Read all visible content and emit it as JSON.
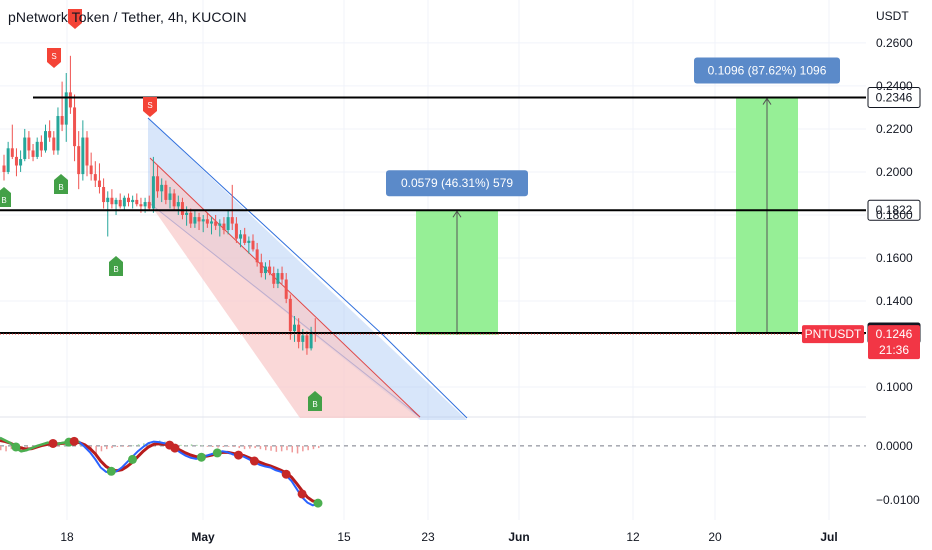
{
  "header": {
    "title": "pNetwork Token / Tether, 4h, KUCOIN",
    "currency": "USDT"
  },
  "chart_data": {
    "type": "candlestick",
    "symbol": "PNTUSDT",
    "exchange": "KUCOIN",
    "interval": "4h",
    "x_ticks": [
      {
        "label": "18",
        "bold": false
      },
      {
        "label": "May",
        "bold": true
      },
      {
        "label": "15",
        "bold": false
      },
      {
        "label": "23",
        "bold": false
      },
      {
        "label": "Jun",
        "bold": true
      },
      {
        "label": "12",
        "bold": false
      },
      {
        "label": "20",
        "bold": false
      },
      {
        "label": "Jul",
        "bold": true
      }
    ],
    "price_axis": {
      "ticks": [
        0.26,
        0.24,
        0.22,
        0.2,
        0.18,
        0.16,
        0.14,
        0.1
      ],
      "tick_labels": [
        "0.2600",
        "0.2400",
        "0.2200",
        "0.2000",
        "0.1800",
        "0.1600",
        "0.1400",
        "0.1000"
      ],
      "range": [
        0.087,
        0.266
      ]
    },
    "levels": [
      {
        "value": 0.2346,
        "label": "0.2346"
      },
      {
        "value": 0.1822,
        "label": "0.1822"
      },
      {
        "value": 0.1251,
        "label": "0.1251"
      }
    ],
    "last_price": {
      "symbol_label": "PNTUSDT",
      "value": 0.1246,
      "label": "0.1246",
      "countdown": "21:36"
    },
    "targets": [
      {
        "label": "0.0579 (46.31%) 579",
        "from": 0.1243,
        "to": 0.1822
      },
      {
        "label": "0.1096 (87.62%) 1096",
        "from": 0.125,
        "to": 0.2346
      }
    ],
    "candles": [
      {
        "o": 0.203,
        "h": 0.208,
        "l": 0.196,
        "c": 0.2
      },
      {
        "o": 0.2,
        "h": 0.214,
        "l": 0.199,
        "c": 0.211
      },
      {
        "o": 0.211,
        "h": 0.222,
        "l": 0.206,
        "c": 0.207
      },
      {
        "o": 0.207,
        "h": 0.211,
        "l": 0.198,
        "c": 0.203
      },
      {
        "o": 0.203,
        "h": 0.21,
        "l": 0.2,
        "c": 0.206
      },
      {
        "o": 0.206,
        "h": 0.22,
        "l": 0.205,
        "c": 0.216
      },
      {
        "o": 0.216,
        "h": 0.219,
        "l": 0.206,
        "c": 0.21
      },
      {
        "o": 0.21,
        "h": 0.213,
        "l": 0.205,
        "c": 0.207
      },
      {
        "o": 0.207,
        "h": 0.216,
        "l": 0.206,
        "c": 0.214
      },
      {
        "o": 0.214,
        "h": 0.217,
        "l": 0.207,
        "c": 0.21
      },
      {
        "o": 0.21,
        "h": 0.222,
        "l": 0.209,
        "c": 0.219
      },
      {
        "o": 0.219,
        "h": 0.224,
        "l": 0.214,
        "c": 0.216
      },
      {
        "o": 0.216,
        "h": 0.219,
        "l": 0.208,
        "c": 0.21
      },
      {
        "o": 0.21,
        "h": 0.23,
        "l": 0.208,
        "c": 0.226
      },
      {
        "o": 0.226,
        "h": 0.242,
        "l": 0.219,
        "c": 0.222
      },
      {
        "o": 0.222,
        "h": 0.246,
        "l": 0.214,
        "c": 0.237
      },
      {
        "o": 0.237,
        "h": 0.254,
        "l": 0.227,
        "c": 0.23
      },
      {
        "o": 0.23,
        "h": 0.236,
        "l": 0.205,
        "c": 0.212
      },
      {
        "o": 0.212,
        "h": 0.219,
        "l": 0.192,
        "c": 0.199
      },
      {
        "o": 0.199,
        "h": 0.224,
        "l": 0.196,
        "c": 0.216
      },
      {
        "o": 0.216,
        "h": 0.219,
        "l": 0.198,
        "c": 0.203
      },
      {
        "o": 0.203,
        "h": 0.209,
        "l": 0.196,
        "c": 0.199
      },
      {
        "o": 0.199,
        "h": 0.205,
        "l": 0.193,
        "c": 0.196
      },
      {
        "o": 0.196,
        "h": 0.204,
        "l": 0.19,
        "c": 0.193
      },
      {
        "o": 0.193,
        "h": 0.197,
        "l": 0.183,
        "c": 0.186
      },
      {
        "o": 0.186,
        "h": 0.191,
        "l": 0.17,
        "c": 0.188
      },
      {
        "o": 0.188,
        "h": 0.192,
        "l": 0.183,
        "c": 0.185
      },
      {
        "o": 0.185,
        "h": 0.188,
        "l": 0.18,
        "c": 0.187
      },
      {
        "o": 0.187,
        "h": 0.19,
        "l": 0.183,
        "c": 0.184
      },
      {
        "o": 0.184,
        "h": 0.189,
        "l": 0.182,
        "c": 0.188
      },
      {
        "o": 0.188,
        "h": 0.19,
        "l": 0.184,
        "c": 0.186
      },
      {
        "o": 0.186,
        "h": 0.189,
        "l": 0.183,
        "c": 0.187
      },
      {
        "o": 0.187,
        "h": 0.19,
        "l": 0.184,
        "c": 0.185
      },
      {
        "o": 0.185,
        "h": 0.188,
        "l": 0.181,
        "c": 0.184
      },
      {
        "o": 0.184,
        "h": 0.188,
        "l": 0.181,
        "c": 0.186
      },
      {
        "o": 0.186,
        "h": 0.189,
        "l": 0.182,
        "c": 0.183
      },
      {
        "o": 0.183,
        "h": 0.207,
        "l": 0.181,
        "c": 0.198
      },
      {
        "o": 0.198,
        "h": 0.203,
        "l": 0.188,
        "c": 0.191
      },
      {
        "o": 0.191,
        "h": 0.197,
        "l": 0.186,
        "c": 0.194
      },
      {
        "o": 0.194,
        "h": 0.196,
        "l": 0.185,
        "c": 0.187
      },
      {
        "o": 0.187,
        "h": 0.193,
        "l": 0.183,
        "c": 0.19
      },
      {
        "o": 0.19,
        "h": 0.192,
        "l": 0.182,
        "c": 0.184
      },
      {
        "o": 0.184,
        "h": 0.189,
        "l": 0.18,
        "c": 0.186
      },
      {
        "o": 0.186,
        "h": 0.188,
        "l": 0.178,
        "c": 0.18
      },
      {
        "o": 0.18,
        "h": 0.184,
        "l": 0.175,
        "c": 0.181
      },
      {
        "o": 0.181,
        "h": 0.183,
        "l": 0.174,
        "c": 0.176
      },
      {
        "o": 0.176,
        "h": 0.182,
        "l": 0.174,
        "c": 0.179
      },
      {
        "o": 0.179,
        "h": 0.181,
        "l": 0.173,
        "c": 0.177
      },
      {
        "o": 0.177,
        "h": 0.18,
        "l": 0.172,
        "c": 0.178
      },
      {
        "o": 0.178,
        "h": 0.181,
        "l": 0.174,
        "c": 0.176
      },
      {
        "o": 0.176,
        "h": 0.179,
        "l": 0.171,
        "c": 0.177
      },
      {
        "o": 0.177,
        "h": 0.18,
        "l": 0.173,
        "c": 0.175
      },
      {
        "o": 0.175,
        "h": 0.178,
        "l": 0.17,
        "c": 0.176
      },
      {
        "o": 0.176,
        "h": 0.179,
        "l": 0.171,
        "c": 0.173
      },
      {
        "o": 0.173,
        "h": 0.182,
        "l": 0.171,
        "c": 0.179
      },
      {
        "o": 0.179,
        "h": 0.194,
        "l": 0.173,
        "c": 0.176
      },
      {
        "o": 0.176,
        "h": 0.179,
        "l": 0.167,
        "c": 0.169
      },
      {
        "o": 0.169,
        "h": 0.173,
        "l": 0.165,
        "c": 0.171
      },
      {
        "o": 0.171,
        "h": 0.174,
        "l": 0.166,
        "c": 0.167
      },
      {
        "o": 0.167,
        "h": 0.17,
        "l": 0.162,
        "c": 0.168
      },
      {
        "o": 0.168,
        "h": 0.171,
        "l": 0.163,
        "c": 0.164
      },
      {
        "o": 0.164,
        "h": 0.167,
        "l": 0.156,
        "c": 0.158
      },
      {
        "o": 0.158,
        "h": 0.162,
        "l": 0.151,
        "c": 0.153
      },
      {
        "o": 0.153,
        "h": 0.158,
        "l": 0.15,
        "c": 0.156
      },
      {
        "o": 0.156,
        "h": 0.159,
        "l": 0.152,
        "c": 0.153
      },
      {
        "o": 0.153,
        "h": 0.156,
        "l": 0.146,
        "c": 0.148
      },
      {
        "o": 0.148,
        "h": 0.155,
        "l": 0.146,
        "c": 0.153
      },
      {
        "o": 0.153,
        "h": 0.156,
        "l": 0.148,
        "c": 0.15
      },
      {
        "o": 0.15,
        "h": 0.153,
        "l": 0.139,
        "c": 0.141
      },
      {
        "o": 0.141,
        "h": 0.143,
        "l": 0.122,
        "c": 0.126
      },
      {
        "o": 0.126,
        "h": 0.133,
        "l": 0.121,
        "c": 0.129
      },
      {
        "o": 0.129,
        "h": 0.132,
        "l": 0.118,
        "c": 0.121
      },
      {
        "o": 0.121,
        "h": 0.127,
        "l": 0.117,
        "c": 0.124
      },
      {
        "o": 0.124,
        "h": 0.126,
        "l": 0.115,
        "c": 0.118
      },
      {
        "o": 0.118,
        "h": 0.128,
        "l": 0.117,
        "c": 0.125
      },
      {
        "o": 0.125,
        "h": 0.132,
        "l": 0.121,
        "c": 0.1246
      }
    ],
    "oscillator": {
      "ticks": [
        0.0,
        -0.01
      ],
      "tick_labels": [
        "0.0000",
        "−0.0100"
      ],
      "range": [
        -0.0128,
        0.0048
      ],
      "histogram": [
        -0.0008,
        -0.001,
        -0.0006,
        -0.0004,
        -0.0002,
        -0.0003,
        -0.0001,
        0.0002,
        0.0004,
        0.0003,
        0.0001,
        -0.0001,
        0.0002,
        0.0004,
        0.0006,
        0.0005,
        -0.0005,
        -0.001,
        -0.0014,
        -0.001,
        -0.0006,
        -0.0004,
        -0.0002,
        -0.0001,
        -0.0002,
        0.0001,
        0.0003,
        0.0005,
        0.0007,
        0.0009,
        0.001,
        0.0008,
        0.0006,
        0.0004,
        0.0002,
        0.0001,
        0.0003,
        0.0002,
        0.0001,
        -0.0001,
        -0.0002,
        -0.0003,
        -0.0002,
        -0.0001,
        -0.0002,
        -0.0004,
        -0.0006,
        -0.0005,
        -0.0004,
        -0.0006,
        -0.0008,
        -0.0009,
        -0.0011,
        -0.001,
        -0.0008,
        -0.0012,
        -0.0014,
        -0.001,
        -0.0008,
        -0.0006,
        -0.0004
      ],
      "macd": [
        0.0015,
        0.001,
        0.0005,
        -0.0004,
        -0.001,
        -0.0008,
        -0.0004,
        0.0,
        0.0003,
        0.0006,
        0.0005,
        0.0004,
        0.0006,
        0.0008,
        0.001,
        0.0007,
        -0.0002,
        -0.0012,
        -0.0025,
        -0.004,
        -0.0048,
        -0.005,
        -0.0047,
        -0.004,
        -0.003,
        -0.002,
        -0.001,
        -0.0002,
        0.0005,
        0.0008,
        0.0007,
        0.0005,
        0.0002,
        -0.0005,
        -0.0012,
        -0.0018,
        -0.0022,
        -0.0024,
        -0.0022,
        -0.0018,
        -0.0015,
        -0.0012,
        -0.001,
        -0.0012,
        -0.0016,
        -0.0018,
        -0.002,
        -0.0025,
        -0.003,
        -0.0035,
        -0.0038,
        -0.004,
        -0.0045,
        -0.0048,
        -0.0055,
        -0.0065,
        -0.008,
        -0.0095,
        -0.0105,
        -0.011,
        -0.0108
      ],
      "signal": [
        0.001,
        0.0008,
        0.0005,
        0.0,
        -0.0004,
        -0.0006,
        -0.0005,
        -0.0002,
        0.0001,
        0.0003,
        0.0004,
        0.0004,
        0.0005,
        0.0006,
        0.0007,
        0.0006,
        0.0002,
        -0.0005,
        -0.0015,
        -0.0028,
        -0.0038,
        -0.0044,
        -0.0046,
        -0.0044,
        -0.0038,
        -0.003,
        -0.002,
        -0.001,
        -0.0002,
        0.0003,
        0.0004,
        0.0003,
        0.0001,
        -0.0003,
        -0.0008,
        -0.0013,
        -0.0017,
        -0.002,
        -0.002,
        -0.0019,
        -0.0017,
        -0.0014,
        -0.0012,
        -0.0012,
        -0.0014,
        -0.0016,
        -0.0018,
        -0.0022,
        -0.0026,
        -0.003,
        -0.0034,
        -0.0037,
        -0.0041,
        -0.0045,
        -0.005,
        -0.0058,
        -0.007,
        -0.0083,
        -0.0095,
        -0.0102,
        -0.0104
      ]
    },
    "signals": [
      {
        "type": "S",
        "candle": 16
      },
      {
        "type": "S",
        "candle": 36
      },
      {
        "type": "B",
        "candle": 0
      },
      {
        "type": "B",
        "candle": 18
      },
      {
        "type": "B",
        "candle": 29
      },
      {
        "type": "B",
        "candle": 76
      }
    ],
    "colors": {
      "up": "#26a69a",
      "down": "#ef5350",
      "target_fill": "#90ee90",
      "buy_marker": "#43a047",
      "sell_marker": "#f44336",
      "label_bg": "#5b8ac9",
      "channel_blue": "#a8c8f5",
      "channel_red": "#f8c8c8",
      "macd_line": "#2962ff",
      "signal_line": "#b71c1c",
      "osc_dot_green": "#4caf50",
      "osc_dot_red": "#c62828"
    }
  }
}
